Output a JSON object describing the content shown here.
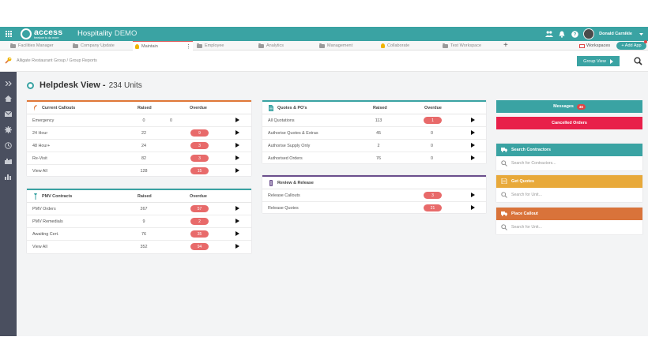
{
  "topbar": {
    "logo_word": "access",
    "logo_tagline": "freedom to do more",
    "product": "Hospitality",
    "product_suffix": "DEMO",
    "username": "Donald Carnikle",
    "bg_color": "#3aa3a3"
  },
  "tabs": [
    {
      "label": "Facilities Manager",
      "icon": "folder-icon"
    },
    {
      "label": "Company Update",
      "icon": "folder-icon"
    },
    {
      "label": "Maintain",
      "icon": "maintain-icon",
      "active": true
    },
    {
      "label": "Employee",
      "icon": "folder-icon"
    },
    {
      "label": "Analytics",
      "icon": "folder-icon"
    },
    {
      "label": "Management",
      "icon": "folder-icon"
    },
    {
      "label": "Collaborate",
      "icon": "bulb-icon"
    },
    {
      "label": "Test Workspace",
      "icon": "folder-icon"
    }
  ],
  "tabs_right": {
    "plus": "+",
    "workspaces": "Workspaces",
    "add_app": "+ Add App"
  },
  "breadcrumb": {
    "text": "Alligate Restaurant Group  /  Group Reports"
  },
  "group_view": {
    "label": "Group View"
  },
  "page": {
    "title": "Helpdesk View -",
    "units": "234 Units"
  },
  "current_callouts": {
    "title": "Current Callouts",
    "col_raised": "Raised",
    "col_overdue": "Overdue",
    "rows": [
      {
        "label": "Emergency",
        "raised": "0",
        "overdue": "0",
        "pill": false
      },
      {
        "label": "24 Hour",
        "raised": "22",
        "overdue": "9",
        "pill": true
      },
      {
        "label": "48 Hour+",
        "raised": "24",
        "overdue": "3",
        "pill": true
      },
      {
        "label": "Re-Visit",
        "raised": "82",
        "overdue": "3",
        "pill": true
      },
      {
        "label": "View All",
        "raised": "128",
        "overdue": "15",
        "pill": true
      }
    ]
  },
  "pmv_contracts": {
    "title": "PMV Contracts",
    "col_raised": "Raised",
    "col_overdue": "Overdue",
    "rows": [
      {
        "label": "PMV Orders",
        "raised": "267",
        "overdue": "57",
        "pill": true
      },
      {
        "label": "PMV Remedials",
        "raised": "9",
        "overdue": "2",
        "pill": true
      },
      {
        "label": "Awaiting Cert.",
        "raised": "76",
        "overdue": "35",
        "pill": true
      },
      {
        "label": "View All",
        "raised": "352",
        "overdue": "94",
        "pill": true
      }
    ]
  },
  "quotes_pos": {
    "title": "Quotes & PO's",
    "col_raised": "Raised",
    "col_overdue": "Overdue",
    "rows": [
      {
        "label": "All Quotations",
        "raised": "113",
        "overdue": "1",
        "pill": true
      },
      {
        "label": "Authorise Quotes & Extras",
        "raised": "45",
        "overdue": "0",
        "pill": false
      },
      {
        "label": "Authorise Supply Only",
        "raised": "2",
        "overdue": "0",
        "pill": false
      },
      {
        "label": "Authorised Orders",
        "raised": "76",
        "overdue": "0",
        "pill": false
      }
    ]
  },
  "review_release": {
    "title": "Review & Release",
    "rows": [
      {
        "label": "Release Callouts",
        "overdue": "3"
      },
      {
        "label": "Release Quotes",
        "overdue": "21"
      }
    ]
  },
  "right": {
    "messages_label": "Messages",
    "messages_count": "46",
    "cancelled_label": "Cancelled Orders",
    "search_contractors_title": "Search Contractors",
    "search_contractors_placeholder": "Search for Contractors...",
    "get_quotes_title": "Get Quotes",
    "get_quotes_placeholder": "Search for Unit...",
    "place_callout_title": "Place Callout",
    "place_callout_placeholder": "Search for Unit..."
  },
  "colors": {
    "teal": "#3aa3a3",
    "red": "#e8204a",
    "pill": "#e86a6a",
    "amber": "#e8a93a",
    "orange": "#d9733a",
    "sidebar": "#4a4f5f"
  }
}
